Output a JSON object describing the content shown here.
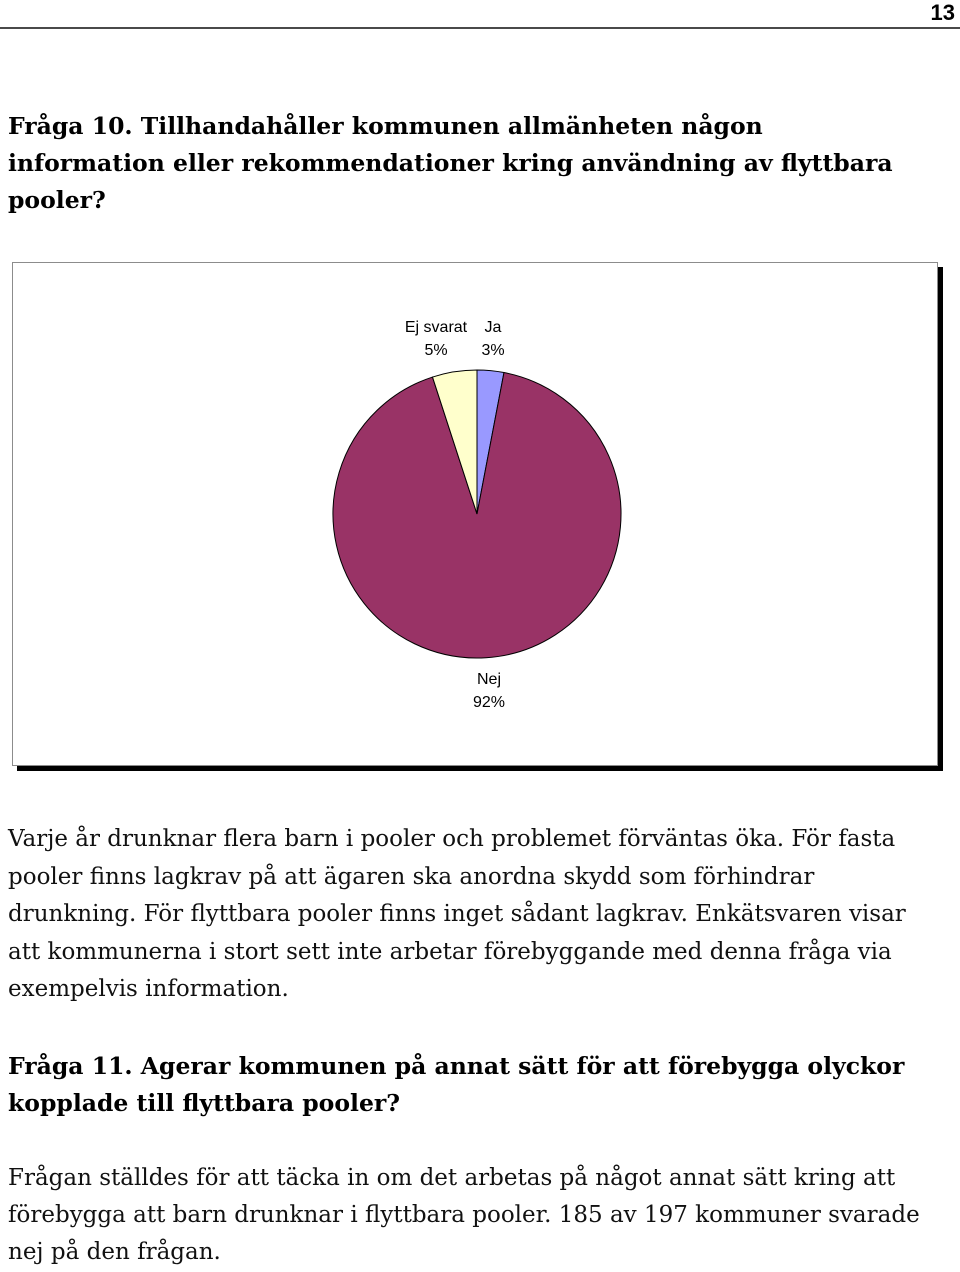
{
  "page_number": "13",
  "question_10": {
    "heading_lines": [
      "Fråga 10. Tillhandahåller kommunen allmänheten någon",
      "information eller rekommendationer kring användning av flyttbara",
      "pooler?"
    ]
  },
  "chart_data": {
    "type": "pie",
    "categories": [
      "Ja",
      "Nej",
      "Ej svarat"
    ],
    "values": [
      3,
      92,
      5
    ],
    "data_labels": [
      "3%",
      "92%",
      "5%"
    ],
    "colors": [
      "#9999FF",
      "#993366",
      "#FFFFCC"
    ]
  },
  "paragraph_1": {
    "lines": [
      "Varje år drunknar flera barn i pooler och problemet förväntas öka. För fasta",
      "pooler finns lagkrav på att ägaren ska anordna skydd som förhindrar",
      "drunkning. För flyttbara pooler finns inget sådant lagkrav. Enkätsvaren visar",
      "att kommunerna i stort sett inte arbetar förebyggande med denna fråga via",
      "exempelvis information."
    ]
  },
  "question_11": {
    "heading_lines": [
      "Fråga 11. Agerar kommunen på annat sätt för att förebygga olyckor",
      "kopplade till flyttbara pooler?"
    ]
  },
  "paragraph_2": {
    "lines": [
      "Frågan ställdes för att täcka in om det arbetas på något annat sätt kring att",
      "förebygga att barn drunknar i flyttbara pooler. 185 av 197 kommuner svarade",
      "nej på den frågan."
    ]
  }
}
